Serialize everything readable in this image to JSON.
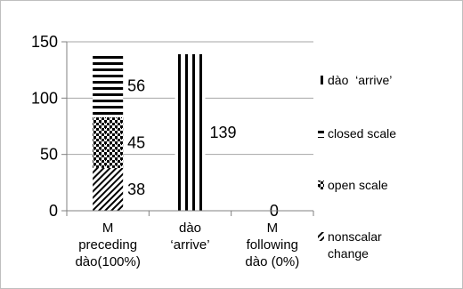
{
  "chart_data": {
    "type": "bar",
    "stacked": true,
    "categories": [
      [
        "M",
        "preceding",
        "dào(100%)"
      ],
      [
        "dào",
        "‘arrive’"
      ],
      [
        "M",
        "following",
        "dào (0%)"
      ]
    ],
    "series": [
      {
        "name": "nonscalar change",
        "pattern": "diagonal-stripes",
        "values": [
          38,
          0,
          0
        ]
      },
      {
        "name": "open scale",
        "pattern": "dots",
        "values": [
          45,
          0,
          0
        ]
      },
      {
        "name": "closed scale",
        "pattern": "horizontal-stripes",
        "values": [
          56,
          0,
          0
        ]
      },
      {
        "name": "dào  ‘arrive’",
        "pattern": "vertical-stripes",
        "values": [
          0,
          139,
          0
        ]
      }
    ],
    "data_labels": [
      {
        "text": "38",
        "category": 0,
        "series": 0
      },
      {
        "text": "45",
        "category": 0,
        "series": 1
      },
      {
        "text": "56",
        "category": 0,
        "series": 2
      },
      {
        "text": "139",
        "category": 1,
        "series": 3
      },
      {
        "text": "0",
        "category": 2,
        "series": 0
      }
    ],
    "yticks": [
      0,
      50,
      100,
      150
    ],
    "ylim": [
      0,
      150
    ],
    "grid": true,
    "legend_position": "right",
    "legend_order": [
      3,
      2,
      1,
      0
    ]
  }
}
